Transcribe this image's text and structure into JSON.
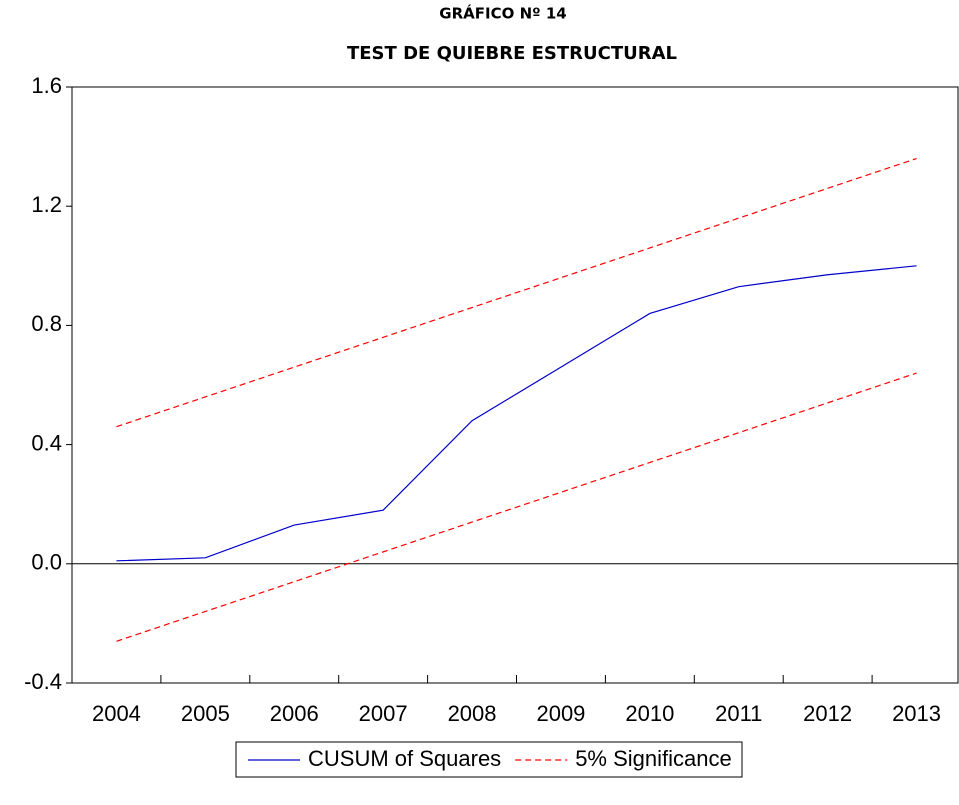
{
  "chart_data": {
    "type": "line",
    "title": "GRÁFICO Nº  14",
    "subtitle": "TEST DE QUIEBRE ESTRUCTURAL",
    "categories": [
      "2004",
      "2005",
      "2006",
      "2007",
      "2008",
      "2009",
      "2010",
      "2011",
      "2012",
      "2013"
    ],
    "series": [
      {
        "name": "CUSUM of Squares",
        "color": "#0000cc",
        "dashed": false,
        "values": [
          0.01,
          0.02,
          0.13,
          0.18,
          0.48,
          0.66,
          0.84,
          0.93,
          0.97,
          1.0
        ]
      },
      {
        "name": "5% Significance",
        "color": "#ff0000",
        "dashed": true,
        "values": [
          0.46,
          0.56,
          0.66,
          0.76,
          0.86,
          0.96,
          1.06,
          1.16,
          1.26,
          1.36
        ],
        "lower": [
          -0.26,
          -0.16,
          -0.06,
          0.04,
          0.14,
          0.24,
          0.34,
          0.44,
          0.54,
          0.64
        ]
      }
    ],
    "ylim": [
      -0.4,
      1.6
    ],
    "yticks": [
      {
        "value": -0.4,
        "label": "-0.4"
      },
      {
        "value": 0,
        "label": "0.0"
      },
      0.4,
      0.8,
      1.2,
      1.6
    ],
    "zero_line": true,
    "grid": false,
    "legend": "bottom"
  }
}
